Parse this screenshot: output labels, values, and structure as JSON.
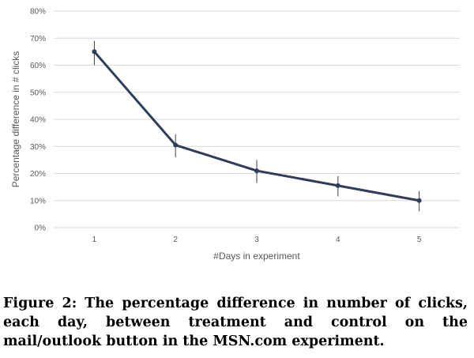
{
  "chart_data": {
    "type": "line",
    "x": [
      1,
      2,
      3,
      4,
      5
    ],
    "xticks": [
      "1",
      "2",
      "3",
      "4",
      "5"
    ],
    "series": [
      {
        "values": [
          65,
          30.5,
          21,
          15.5,
          10
        ],
        "error_low": [
          60,
          26,
          16.5,
          11.5,
          6
        ],
        "error_high": [
          69,
          34.5,
          25,
          19,
          13.5
        ],
        "color": "#2f3d5c"
      }
    ],
    "xlabel": "#Days in experiment",
    "ylabel": "Percentage difference in # clicks",
    "ylim": [
      0,
      80
    ],
    "yticks": [
      "0%",
      "10%",
      "20%",
      "30%",
      "40%",
      "50%",
      "60%",
      "70%",
      "80%"
    ],
    "grid": true,
    "gridColor": "#d9d9d9"
  },
  "caption": "Figure 2: The percentage difference in number of clicks, each day, between treatment and control on the mail/outlook button in the MSN.com experiment."
}
